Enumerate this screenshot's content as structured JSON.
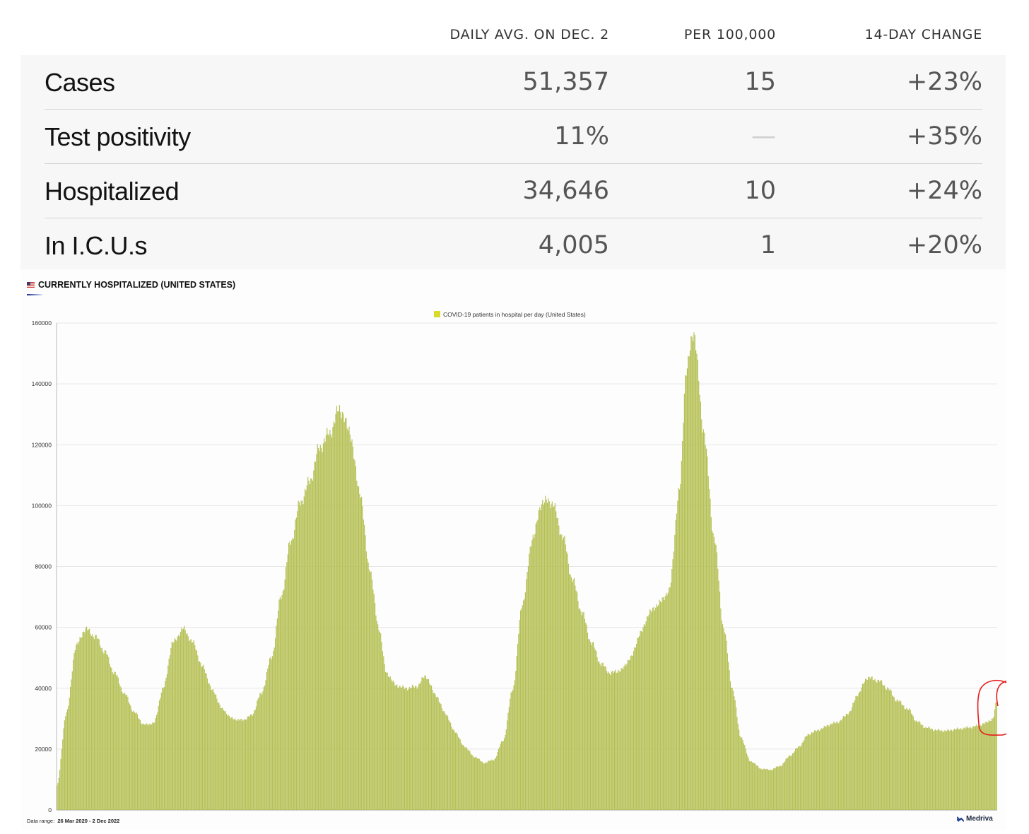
{
  "stats": {
    "headers": [
      "DAILY AVG. ON DEC. 2",
      "PER 100,000",
      "14-DAY CHANGE"
    ],
    "rows": [
      {
        "label": "Cases",
        "daily_avg": "51,357",
        "per_100k": "15",
        "change": "+23%"
      },
      {
        "label": "Test positivity",
        "daily_avg": "11%",
        "per_100k": "—",
        "change": "+35%"
      },
      {
        "label": "Hospitalized",
        "daily_avg": "34,646",
        "per_100k": "10",
        "change": "+24%"
      },
      {
        "label": "In I.C.U.s",
        "daily_avg": "4,005",
        "per_100k": "1",
        "change": "+20%"
      }
    ]
  },
  "chart_panel": {
    "title": "CURRENTLY HOSPITALIZED (UNITED STATES)",
    "flag_icon": "us-flag-icon",
    "data_range_label": "Data range:",
    "data_range_value": "26 Mar 2020  -  2 Dec 2022",
    "brand": "Medriva",
    "brand_icon": "medriva-logo-icon",
    "annotation": "red hand-drawn circle around latest values"
  },
  "chart_data": {
    "type": "bar",
    "x_start": "2020-03-26",
    "x_end": "2022-12-02",
    "ylim": [
      0,
      160000
    ],
    "yticks": [
      0,
      20000,
      40000,
      60000,
      80000,
      100000,
      120000,
      140000,
      160000
    ],
    "grid": true,
    "legend_position": "top-center",
    "bar_color": "#b5c054",
    "legend_color": "#d8db2a",
    "series": [
      {
        "name": "COVID-19 patients in hospital per day (United States)",
        "x": [
          "2020-03-26",
          "2020-04-05",
          "2020-04-15",
          "2020-04-25",
          "2020-05-05",
          "2020-05-15",
          "2020-05-25",
          "2020-06-05",
          "2020-06-15",
          "2020-06-25",
          "2020-07-05",
          "2020-07-15",
          "2020-07-25",
          "2020-08-05",
          "2020-08-15",
          "2020-08-25",
          "2020-09-05",
          "2020-09-15",
          "2020-09-25",
          "2020-10-05",
          "2020-10-15",
          "2020-10-25",
          "2020-11-05",
          "2020-11-15",
          "2020-11-25",
          "2020-12-05",
          "2020-12-15",
          "2020-12-25",
          "2021-01-05",
          "2021-01-15",
          "2021-01-25",
          "2021-02-05",
          "2021-02-15",
          "2021-02-25",
          "2021-03-05",
          "2021-03-15",
          "2021-03-25",
          "2021-04-05",
          "2021-04-15",
          "2021-04-25",
          "2021-05-05",
          "2021-05-15",
          "2021-05-25",
          "2021-06-05",
          "2021-06-15",
          "2021-06-25",
          "2021-07-05",
          "2021-07-15",
          "2021-07-25",
          "2021-08-05",
          "2021-08-15",
          "2021-08-25",
          "2021-09-05",
          "2021-09-15",
          "2021-09-25",
          "2021-10-05",
          "2021-10-15",
          "2021-10-25",
          "2021-11-05",
          "2021-11-15",
          "2021-11-25",
          "2021-12-05",
          "2021-12-15",
          "2021-12-25",
          "2022-01-05",
          "2022-01-12",
          "2022-01-20",
          "2022-01-30",
          "2022-02-10",
          "2022-02-20",
          "2022-03-01",
          "2022-03-10",
          "2022-03-20",
          "2022-04-01",
          "2022-04-10",
          "2022-04-20",
          "2022-05-01",
          "2022-05-10",
          "2022-05-20",
          "2022-06-01",
          "2022-06-10",
          "2022-06-20",
          "2022-07-01",
          "2022-07-10",
          "2022-07-20",
          "2022-08-01",
          "2022-08-10",
          "2022-08-20",
          "2022-09-01",
          "2022-09-10",
          "2022-09-20",
          "2022-10-01",
          "2022-10-10",
          "2022-10-20",
          "2022-11-01",
          "2022-11-10",
          "2022-11-20",
          "2022-11-28",
          "2022-12-02"
        ],
        "values": [
          8000,
          32000,
          54000,
          59500,
          57000,
          52000,
          45000,
          38000,
          32000,
          28000,
          28500,
          40000,
          55000,
          59500,
          55000,
          47000,
          39000,
          33000,
          30000,
          29500,
          31000,
          38000,
          50000,
          70000,
          88000,
          101000,
          108000,
          119000,
          124000,
          132000,
          125000,
          105000,
          80000,
          60000,
          45000,
          41000,
          40000,
          40500,
          44000,
          38000,
          32000,
          26000,
          21000,
          17500,
          15500,
          16500,
          23000,
          40000,
          68000,
          90000,
          101500,
          101000,
          90000,
          76000,
          65000,
          55000,
          48000,
          45000,
          46000,
          50000,
          58000,
          65000,
          68000,
          72000,
          105000,
          145000,
          157000,
          125000,
          90000,
          60000,
          40000,
          24000,
          16000,
          13500,
          13200,
          14500,
          18000,
          21000,
          25000,
          26500,
          28000,
          29000,
          32000,
          38000,
          43500,
          42500,
          40000,
          36000,
          33000,
          29000,
          27000,
          26200,
          26000,
          26500,
          27000,
          27500,
          28500,
          30000,
          35500
        ]
      }
    ]
  }
}
